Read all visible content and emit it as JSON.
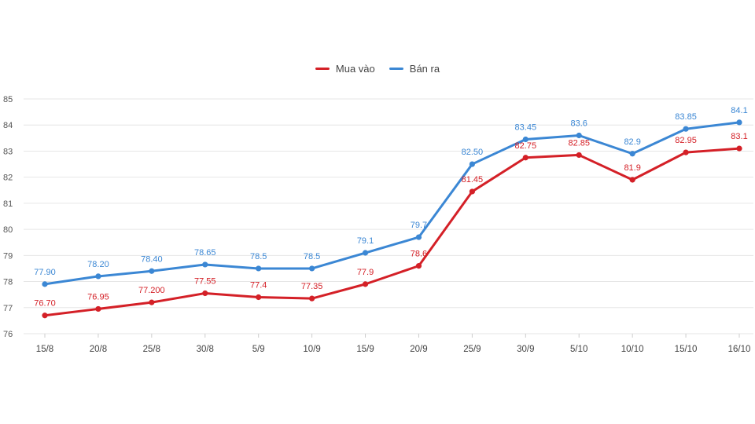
{
  "chart_data": {
    "type": "line",
    "title": "",
    "xlabel": "",
    "ylabel": "",
    "ylim": [
      76,
      85
    ],
    "yticks": [
      76,
      77,
      78,
      79,
      80,
      81,
      82,
      83,
      84,
      85
    ],
    "grid": true,
    "legend_position": "top-center",
    "categories": [
      "15/8",
      "20/8",
      "25/8",
      "30/8",
      "5/9",
      "10/9",
      "15/9",
      "20/9",
      "25/9",
      "30/9",
      "5/10",
      "10/10",
      "15/10",
      "16/10"
    ],
    "series": [
      {
        "name": "Mua vào",
        "color": "#d42027",
        "values": [
          76.7,
          76.95,
          77.2,
          77.55,
          77.4,
          77.35,
          77.9,
          78.6,
          81.45,
          82.75,
          82.85,
          81.9,
          82.95,
          83.1
        ],
        "labels": [
          "76.70",
          "76.95",
          "77.200",
          "77.55",
          "77.4",
          "77.35",
          "77.9",
          "78.6",
          "81.45",
          "82.75",
          "82.85",
          "81.9",
          "82.95",
          "83.1"
        ]
      },
      {
        "name": "Bán ra",
        "color": "#3b87d4",
        "values": [
          77.9,
          78.2,
          78.4,
          78.65,
          78.5,
          78.5,
          79.1,
          79.7,
          82.5,
          83.45,
          83.6,
          82.9,
          83.85,
          84.1
        ],
        "labels": [
          "77.90",
          "78.20",
          "78.40",
          "78.65",
          "78.5",
          "78.5",
          "79.1",
          "79.7",
          "82.50",
          "83.45",
          "83.6",
          "82.9",
          "83.85",
          "84.1"
        ]
      }
    ]
  }
}
